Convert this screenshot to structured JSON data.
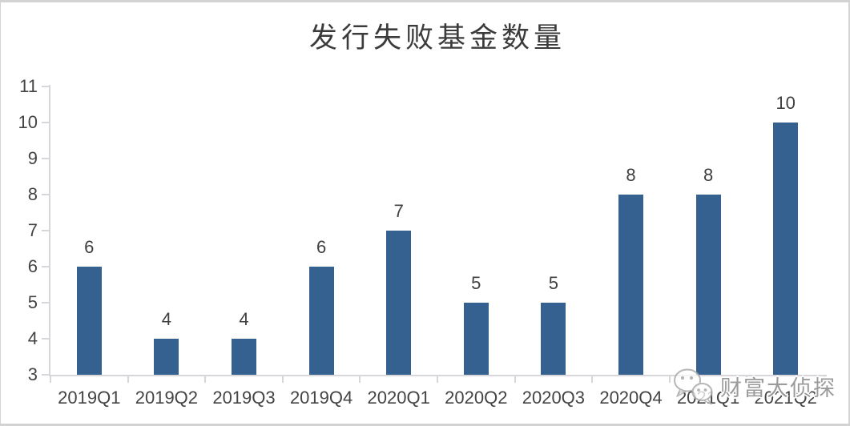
{
  "chart_data": {
    "type": "bar",
    "title": "发行失败基金数量",
    "categories": [
      "2019Q1",
      "2019Q2",
      "2019Q3",
      "2019Q4",
      "2020Q1",
      "2020Q2",
      "2020Q3",
      "2020Q4",
      "2021Q1",
      "2021Q2"
    ],
    "values": [
      6,
      4,
      4,
      6,
      7,
      5,
      5,
      8,
      8,
      10
    ],
    "xlabel": "",
    "ylabel": "",
    "ylim": [
      3,
      11
    ],
    "ytick_step": 1,
    "yticks": [
      3,
      4,
      5,
      6,
      7,
      8,
      9,
      10,
      11
    ],
    "grid": false,
    "legend": "none",
    "data_labels": true,
    "bar_color": "#34618F",
    "label_color": "#404040",
    "axis_text_color": "#444444",
    "axis_line_color": "#D9D6DB",
    "title_color": "#3B3B3B",
    "background": "#FFFFFF"
  },
  "figure": {
    "border_color": "#D3D3D3"
  },
  "watermark": {
    "text": "财富大侦探",
    "icon": "wechat-icon",
    "text_color": "#9B9B9B",
    "icon_color": "#ADADAD"
  }
}
